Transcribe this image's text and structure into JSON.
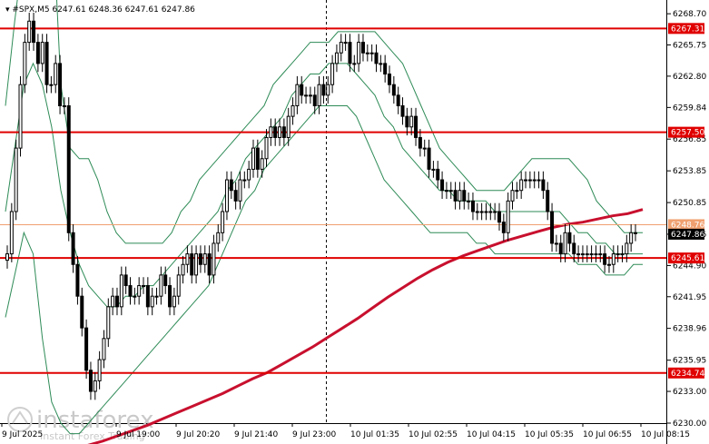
{
  "chart_title": {
    "symbol": "#SPX,M5",
    "ohlc": "6247.61 6248.36 6247.61 6247.86"
  },
  "watermark": {
    "brand": "instaforex",
    "tagline": "Instant Forex Trading"
  },
  "colors": {
    "candle": "#000000",
    "bollinger": "#2e8b57",
    "ma": "#c8102e",
    "level_line": "#e00000",
    "current_line": "#f0a070",
    "current_tag": "#000000",
    "level_tag": "#e00000"
  },
  "chart_data": {
    "type": "candlestick",
    "title": "#SPX,M5",
    "ylim": [
      6230.0,
      6270.0
    ],
    "y_ticks": [
      {
        "value": 6268.7,
        "label": "6268.70"
      },
      {
        "value": 6265.75,
        "label": "6265.75"
      },
      {
        "value": 6262.8,
        "label": "6262.80"
      },
      {
        "value": 6259.84,
        "label": "6259.84"
      },
      {
        "value": 6256.85,
        "label": "6256.85"
      },
      {
        "value": 6253.85,
        "label": "6253.85"
      },
      {
        "value": 6250.85,
        "label": "6250.85"
      },
      {
        "value": 6247.86,
        "label": "6247.86"
      },
      {
        "value": 6244.9,
        "label": "6244.90"
      },
      {
        "value": 6241.95,
        "label": "6241.95"
      },
      {
        "value": 6238.96,
        "label": "6238.96"
      },
      {
        "value": 6235.95,
        "label": "6235.95"
      },
      {
        "value": 6233.0,
        "label": "6233.00"
      },
      {
        "value": 6230.0,
        "label": "6230.00"
      }
    ],
    "x_ticks": [
      "9 Jul 2025",
      "9 Jul 19:00",
      "9 Jul 20:20",
      "9 Jul 21:40",
      "9 Jul 23:00",
      "10 Jul 01:35",
      "10 Jul 02:55",
      "10 Jul 04:15",
      "10 Jul 05:35",
      "10 Jul 06:55",
      "10 Jul 08:15"
    ],
    "levels": [
      {
        "value": 6267.31,
        "label": "6267.31"
      },
      {
        "value": 6257.5,
        "label": "6257.50"
      },
      {
        "value": 6245.61,
        "label": "6245.61"
      },
      {
        "value": 6234.74,
        "label": "6234.74"
      }
    ],
    "current_price": {
      "value": 6247.86,
      "label": "6247.86"
    },
    "ma_level": {
      "value": 6248.76,
      "label": "6248.76"
    },
    "close": [
      6246,
      6250,
      6256,
      6262,
      6266,
      6268,
      6266,
      6264,
      6266,
      6262,
      6262,
      6264,
      6260,
      6260,
      6248,
      6245,
      6242,
      6239,
      6235,
      6233,
      6234,
      6236,
      6238,
      6241,
      6242,
      6241,
      6244,
      6243,
      6242,
      6242,
      6243,
      6243,
      6241,
      6242,
      6242,
      6244,
      6243,
      6241,
      6242,
      6244,
      6245,
      6246,
      6244,
      6246,
      6245,
      6246,
      6244,
      6247,
      6248,
      6250,
      6253,
      6252,
      6251,
      6253,
      6253,
      6254,
      6256,
      6254,
      6255,
      6257,
      6258,
      6257,
      6258,
      6257,
      6259,
      6260,
      6262,
      6261,
      6261,
      6261,
      6260,
      6262,
      6261,
      6262,
      6264,
      6265,
      6266,
      6266,
      6264,
      6264,
      6266,
      6265,
      6265,
      6265,
      6264,
      6264,
      6263,
      6262,
      6261,
      6260,
      6259,
      6258,
      6259,
      6257,
      6256,
      6256,
      6254,
      6254,
      6253,
      6252,
      6252,
      6252,
      6251,
      6252,
      6251,
      6251,
      6250,
      6250,
      6250,
      6250,
      6250,
      6250,
      6249,
      6248,
      6251,
      6252,
      6252,
      6253,
      6253,
      6253,
      6253,
      6253,
      6252,
      6250,
      6247,
      6247,
      6246,
      6248,
      6247,
      6246,
      6246,
      6246,
      6246,
      6246,
      6246,
      6246,
      6245,
      6245,
      6246,
      6246,
      6246,
      6247,
      6248,
      6248
    ],
    "ma_values": [
      6227.5,
      6227.9,
      6228.3,
      6228.8,
      6229.3,
      6229.8,
      6230.4,
      6231.0,
      6231.6,
      6232.2,
      6232.8,
      6233.5,
      6234.2,
      6234.8,
      6235.6,
      6236.4,
      6237.2,
      6238.1,
      6239.0,
      6239.9,
      6240.9,
      6241.9,
      6242.8,
      6243.7,
      6244.5,
      6245.2,
      6245.8,
      6246.3,
      6246.8,
      6247.3,
      6247.7,
      6248.1,
      6248.5,
      6248.8,
      6249.0,
      6249.3,
      6249.6,
      6249.8,
      6250.2
    ],
    "bb_upper": [
      6260,
      6268,
      6275,
      6282,
      6287,
      6280,
      6262,
      6256,
      6255,
      6255,
      6253,
      6250,
      6248,
      6247,
      6247,
      6247,
      6247,
      6247,
      6248,
      6250,
      6251,
      6253,
      6254,
      6255,
      6256,
      6257,
      6258,
      6259,
      6260,
      6262,
      6263,
      6264,
      6265,
      6266,
      6266,
      6266,
      6267,
      6267,
      6267,
      6267,
      6267,
      6266,
      6265,
      6264,
      6262,
      6260,
      6258,
      6256,
      6255,
      6254,
      6253,
      6252,
      6252,
      6252,
      6252,
      6253,
      6254,
      6255,
      6255,
      6255,
      6255,
      6255,
      6254,
      6253,
      6251,
      6250,
      6249,
      6248,
      6248,
      6248
    ],
    "bb_middle": [
      6250,
      6256,
      6262,
      6264,
      6262,
      6258,
      6252,
      6248,
      6245,
      6243,
      6242,
      6241,
      6241,
      6242,
      6242,
      6243,
      6243,
      6244,
      6245,
      6246,
      6247,
      6248,
      6249,
      6250,
      6252,
      6253,
      6255,
      6256,
      6257,
      6258,
      6259,
      6261,
      6262,
      6263,
      6263,
      6264,
      6264,
      6264,
      6263,
      6262,
      6261,
      6259,
      6258,
      6256,
      6255,
      6254,
      6253,
      6252,
      6252,
      6251,
      6251,
      6251,
      6251,
      6250,
      6250,
      6250,
      6250,
      6250,
      6250,
      6250,
      6250,
      6249,
      6248,
      6248,
      6247,
      6247,
      6246,
      6246,
      6246,
      6246
    ],
    "bb_lower": [
      6240,
      6244,
      6248,
      6246,
      6238,
      6232,
      6230,
      6229,
      6229,
      6230,
      6231,
      6232,
      6233,
      6234,
      6235,
      6236,
      6237,
      6238,
      6239,
      6240,
      6241,
      6242,
      6243,
      6245,
      6247,
      6249,
      6251,
      6252,
      6254,
      6255,
      6256,
      6257,
      6258,
      6259,
      6260,
      6260,
      6260,
      6260,
      6259,
      6257,
      6255,
      6253,
      6252,
      6251,
      6250,
      6249,
      6248,
      6248,
      6248,
      6248,
      6248,
      6247,
      6247,
      6246,
      6246,
      6246,
      6246,
      6246,
      6246,
      6246,
      6246,
      6246,
      6245,
      6245,
      6245,
      6244,
      6244,
      6244,
      6245,
      6245
    ]
  }
}
